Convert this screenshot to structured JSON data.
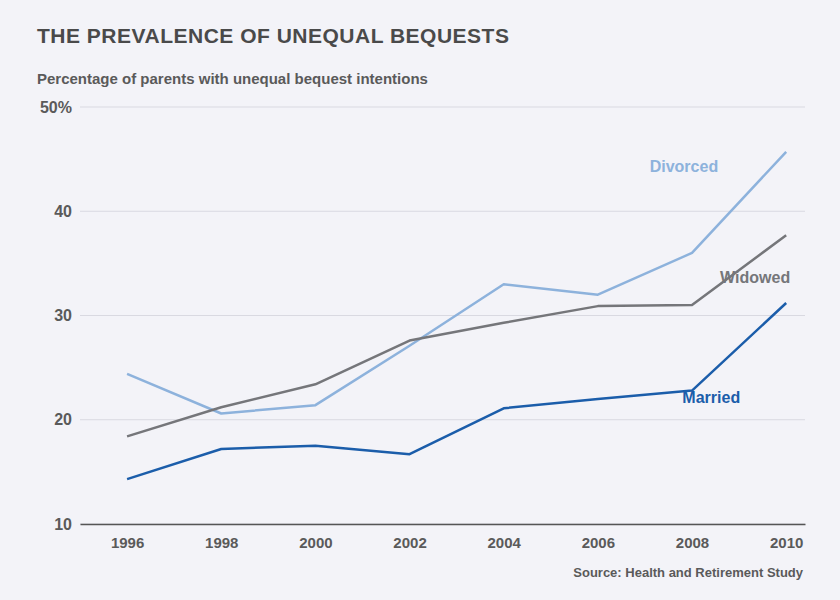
{
  "chart_data": {
    "type": "line",
    "title": "THE PREVALENCE OF UNEQUAL BEQUESTS",
    "subtitle": "Percentage of parents with unequal bequest intentions",
    "source": "Source: Health and Retirement Study",
    "x": [
      1996,
      1998,
      2000,
      2002,
      2004,
      2006,
      2008,
      2010
    ],
    "series": [
      {
        "name": "Divorced",
        "color": "#8db2dc",
        "values": [
          24.4,
          20.6,
          21.4,
          27.1,
          33.0,
          32.0,
          36.0,
          45.7
        ]
      },
      {
        "name": "Widowed",
        "color": "#75767a",
        "values": [
          18.4,
          21.2,
          23.4,
          27.6,
          29.3,
          30.9,
          31.0,
          37.7
        ]
      },
      {
        "name": "Married",
        "color": "#1b5daa",
        "values": [
          14.3,
          17.2,
          17.5,
          16.7,
          21.1,
          22.0,
          22.8,
          31.2
        ]
      }
    ],
    "xlim": [
      1995,
      2010.4
    ],
    "xticks": [
      1996,
      1998,
      2000,
      2002,
      2004,
      2006,
      2008,
      2010
    ],
    "ylim": [
      10,
      50
    ],
    "yticks": [
      10,
      20,
      30,
      40,
      {
        "value": 50,
        "label": "50%"
      }
    ],
    "grid": true
  }
}
